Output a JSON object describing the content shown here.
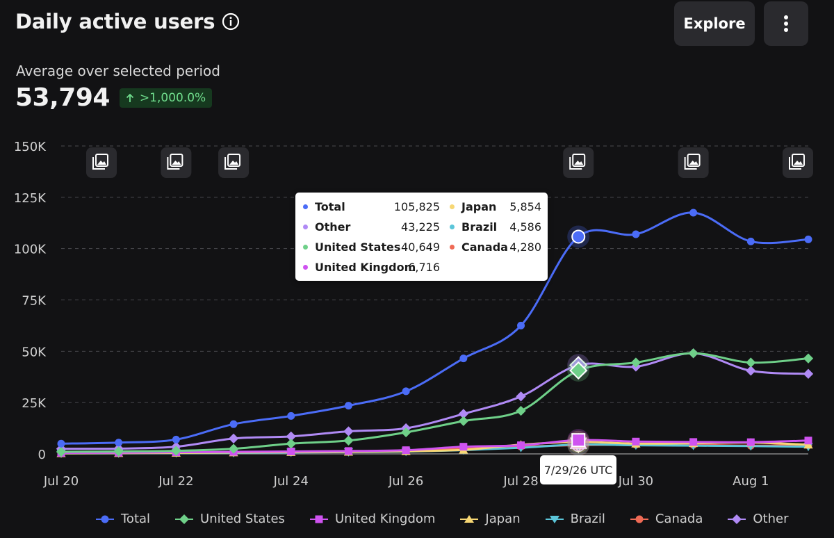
{
  "header": {
    "title": "Daily active users",
    "explore_label": "Explore",
    "subtitle": "Average over selected period",
    "metric": "53,794",
    "change": ">1,000.0%"
  },
  "tooltip": {
    "date": "7/29/26 UTC",
    "left": [
      {
        "name": "Total",
        "value": "105,825",
        "color": "#4b6cf7"
      },
      {
        "name": "Other",
        "value": "43,225",
        "color": "#b08af5"
      },
      {
        "name": "United States",
        "value": "40,649",
        "color": "#6fd089"
      },
      {
        "name": "United Kingdom",
        "value": "6,716",
        "color": "#cf53f0"
      }
    ],
    "right": [
      {
        "name": "Japan",
        "value": "5,854",
        "color": "#f7d774"
      },
      {
        "name": "Brazil",
        "value": "4,586",
        "color": "#5bc5d9"
      },
      {
        "name": "Canada",
        "value": "4,280",
        "color": "#ef6a55"
      }
    ]
  },
  "chart_data": {
    "type": "line",
    "x": [
      "Jul 20",
      "Jul 21",
      "Jul 22",
      "Jul 23",
      "Jul 24",
      "Jul 25",
      "Jul 26",
      "Jul 27",
      "Jul 28",
      "Jul 29",
      "Jul 30",
      "Jul 31",
      "Aug 1",
      "Aug 2"
    ],
    "x_tick_labels": [
      "Jul 20",
      "Jul 22",
      "Jul 24",
      "Jul 26",
      "Jul 28",
      "Jul 30",
      "Aug 1"
    ],
    "y_ticks": [
      0,
      25000,
      50000,
      75000,
      100000,
      125000,
      150000
    ],
    "y_tick_labels": [
      "0",
      "25K",
      "50K",
      "75K",
      "100K",
      "125K",
      "150K"
    ],
    "ylim": [
      0,
      150000
    ],
    "grid": true,
    "legend_position": "bottom",
    "highlighted_index": 9,
    "annotation_markers": [
      "Jul 20",
      "Jul 22",
      "Jul 23",
      "Jul 29",
      "Jul 31",
      "Aug 2"
    ],
    "series": [
      {
        "name": "Total",
        "color": "#4b6cf7",
        "marker": "circle",
        "values": [
          5000,
          5500,
          7000,
          14500,
          18500,
          23500,
          30500,
          46500,
          62500,
          105825,
          107000,
          117500,
          103500,
          104500
        ]
      },
      {
        "name": "United States",
        "color": "#6fd089",
        "marker": "diamond",
        "values": [
          1000,
          1200,
          1500,
          2500,
          5000,
          6500,
          10500,
          16000,
          21000,
          40649,
          44500,
          49000,
          44500,
          46500
        ]
      },
      {
        "name": "United Kingdom",
        "color": "#cf53f0",
        "marker": "square",
        "values": [
          500,
          600,
          800,
          1000,
          1200,
          1400,
          1800,
          3500,
          4200,
          6716,
          6000,
          5800,
          5700,
          6500
        ]
      },
      {
        "name": "Japan",
        "color": "#f7d774",
        "marker": "triangle",
        "values": [
          300,
          400,
          500,
          700,
          900,
          1000,
          1300,
          2000,
          4500,
          5854,
          5000,
          5200,
          5500,
          4500
        ]
      },
      {
        "name": "Brazil",
        "color": "#5bc5d9",
        "marker": "triangle-down",
        "values": [
          200,
          300,
          400,
          500,
          700,
          900,
          1100,
          1800,
          3000,
          4586,
          4200,
          4000,
          3800,
          3500
        ]
      },
      {
        "name": "Canada",
        "color": "#ef6a55",
        "marker": "circle",
        "values": [
          300,
          400,
          500,
          700,
          900,
          1100,
          1400,
          2500,
          3500,
          4280,
          4500,
          4400,
          4000,
          4200
        ]
      },
      {
        "name": "Other",
        "color": "#b08af5",
        "marker": "diamond",
        "values": [
          2500,
          2600,
          3500,
          7500,
          8500,
          11000,
          12500,
          19500,
          28000,
          43225,
          42500,
          49000,
          40500,
          39000
        ]
      }
    ]
  }
}
